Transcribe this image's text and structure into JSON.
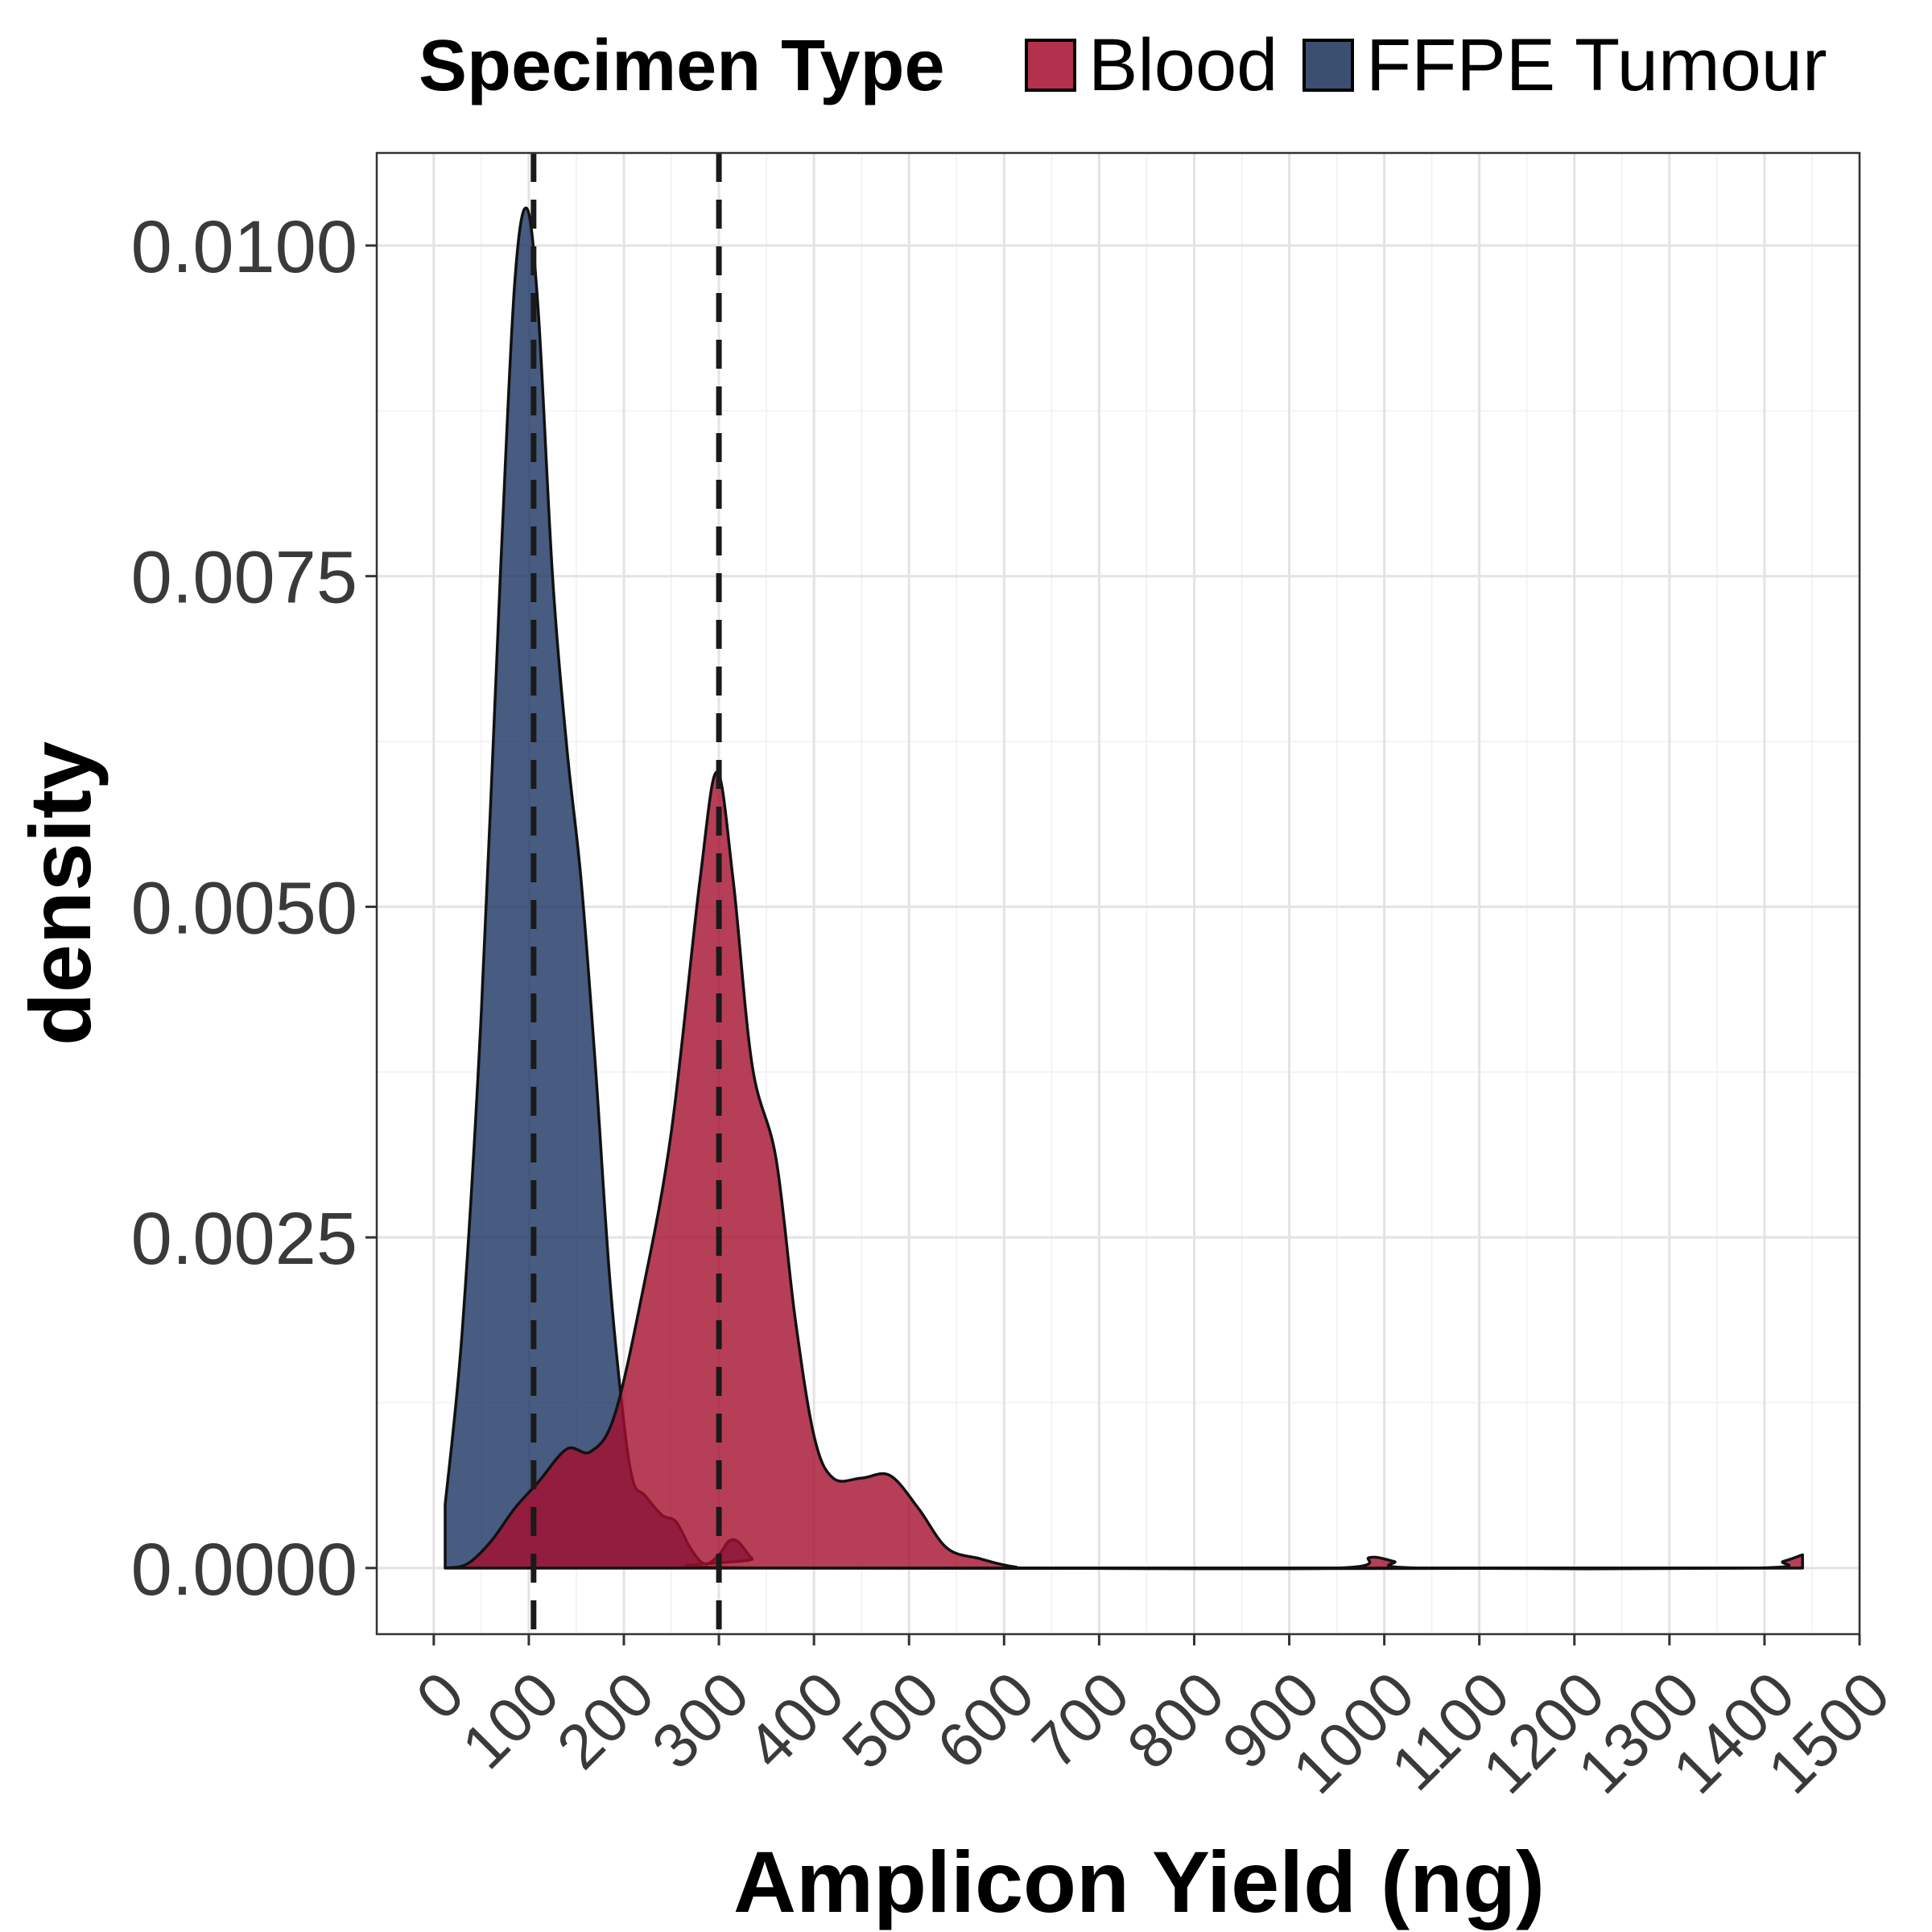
{
  "chart_data": {
    "type": "area",
    "xlabel": "Amplicon Yield (ng)",
    "ylabel": "density",
    "xlim": [
      -60,
      1500
    ],
    "ylim": [
      -0.0005,
      0.0107
    ],
    "x_ticks": [
      0,
      100,
      200,
      300,
      400,
      500,
      600,
      700,
      800,
      900,
      1000,
      1100,
      1200,
      1300,
      1400,
      1500
    ],
    "y_ticks": [
      0.0,
      0.0025,
      0.005,
      0.0075,
      0.01
    ],
    "y_tick_labels": [
      "0.0000",
      "0.0025",
      "0.0050",
      "0.0075",
      "0.0100"
    ],
    "grid": true,
    "legend": {
      "title": "Specimen Type",
      "position": "top",
      "entries": [
        "Blood",
        "FFPE Tumour"
      ]
    },
    "vlines": [
      105,
      300
    ],
    "series": [
      {
        "name": "FFPE Tumour",
        "color": "#1a3260",
        "points": [
          [
            12,
            0.00048
          ],
          [
            30,
            0.0018
          ],
          [
            50,
            0.0042
          ],
          [
            70,
            0.0075
          ],
          [
            85,
            0.0097
          ],
          [
            98,
            0.01028
          ],
          [
            110,
            0.0095
          ],
          [
            125,
            0.0075
          ],
          [
            140,
            0.0062
          ],
          [
            155,
            0.0052
          ],
          [
            170,
            0.0038
          ],
          [
            185,
            0.0022
          ],
          [
            200,
            0.0011
          ],
          [
            210,
            0.00065
          ],
          [
            222,
            0.00055
          ],
          [
            240,
            0.0004
          ],
          [
            255,
            0.00035
          ],
          [
            270,
            0.00015
          ],
          [
            285,
            3e-05
          ],
          [
            300,
            0.0001
          ],
          [
            310,
            0.0002
          ],
          [
            320,
            0.0002
          ],
          [
            335,
            7e-05
          ],
          [
            350,
            0.0
          ],
          [
            1440,
            0.0
          ]
        ]
      },
      {
        "name": "Blood",
        "color": "#a50e2d",
        "points": [
          [
            12,
            0.0
          ],
          [
            35,
            3e-05
          ],
          [
            60,
            0.0002
          ],
          [
            85,
            0.00045
          ],
          [
            110,
            0.00065
          ],
          [
            140,
            0.0009
          ],
          [
            165,
            0.00088
          ],
          [
            190,
            0.00115
          ],
          [
            220,
            0.0021
          ],
          [
            250,
            0.0033
          ],
          [
            280,
            0.0052
          ],
          [
            298,
            0.00602
          ],
          [
            315,
            0.0052
          ],
          [
            335,
            0.0038
          ],
          [
            360,
            0.0031
          ],
          [
            380,
            0.0019
          ],
          [
            400,
            0.001
          ],
          [
            420,
            0.00068
          ],
          [
            450,
            0.00068
          ],
          [
            480,
            0.0007
          ],
          [
            510,
            0.00045
          ],
          [
            540,
            0.00015
          ],
          [
            575,
            7e-05
          ],
          [
            610,
            1e-05
          ],
          [
            650,
            0.0
          ],
          [
            950,
            0.0
          ],
          [
            985,
            8e-05
          ],
          [
            1010,
            5e-05
          ],
          [
            1040,
            0.0
          ],
          [
            1390,
            0.0
          ],
          [
            1420,
            5e-05
          ],
          [
            1440,
            0.0001
          ]
        ]
      }
    ]
  }
}
